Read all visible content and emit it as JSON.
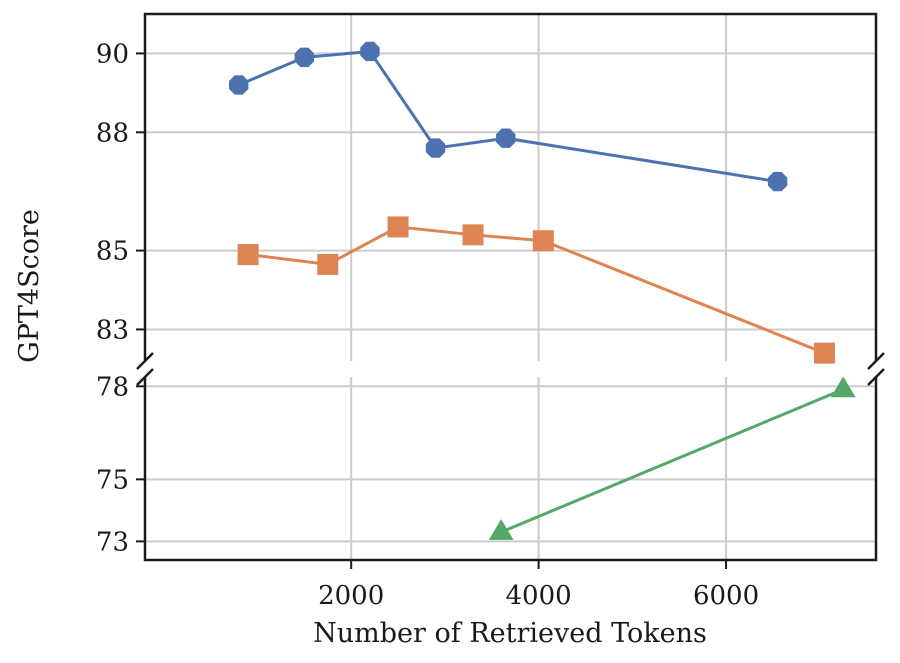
{
  "chart_data": {
    "type": "line",
    "title": "",
    "xlabel": "Number of Retrieved Tokens",
    "ylabel": "GPT4Score",
    "xlim": [
      -200,
      7600
    ],
    "x_ticks": [
      "2000",
      "4000",
      "6000"
    ],
    "x_tick_values": [
      2000,
      4000,
      6000
    ],
    "y_axis_broken": true,
    "upper_panel": {
      "ylim": [
        82.2,
        91.0
      ],
      "y_ticks": [
        "90",
        "88",
        "85",
        "83"
      ],
      "y_tick_values": [
        90,
        88,
        85,
        83
      ]
    },
    "lower_panel": {
      "ylim": [
        72.4,
        78.3
      ],
      "y_ticks": [
        "78",
        "75",
        "73"
      ],
      "y_tick_values": [
        78,
        75,
        73
      ]
    },
    "grid": true,
    "legend": "none",
    "series": [
      {
        "marker": "octagon",
        "color": "#4c72b0",
        "panel": "upper",
        "x": [
          800,
          1500,
          2200,
          2900,
          3650,
          6550
        ],
        "y": [
          89.2,
          89.9,
          90.05,
          87.6,
          87.85,
          86.75
        ]
      },
      {
        "marker": "square",
        "color": "#dd8452",
        "panel": "upper",
        "x": [
          900,
          1750,
          2500,
          3300,
          4050,
          7050
        ],
        "y": [
          84.9,
          84.65,
          85.6,
          85.4,
          85.25,
          82.4
        ]
      },
      {
        "marker": "triangle",
        "color": "#55a868",
        "panel": "lower",
        "x": [
          3600,
          7250
        ],
        "y": [
          73.3,
          77.9
        ]
      }
    ]
  }
}
